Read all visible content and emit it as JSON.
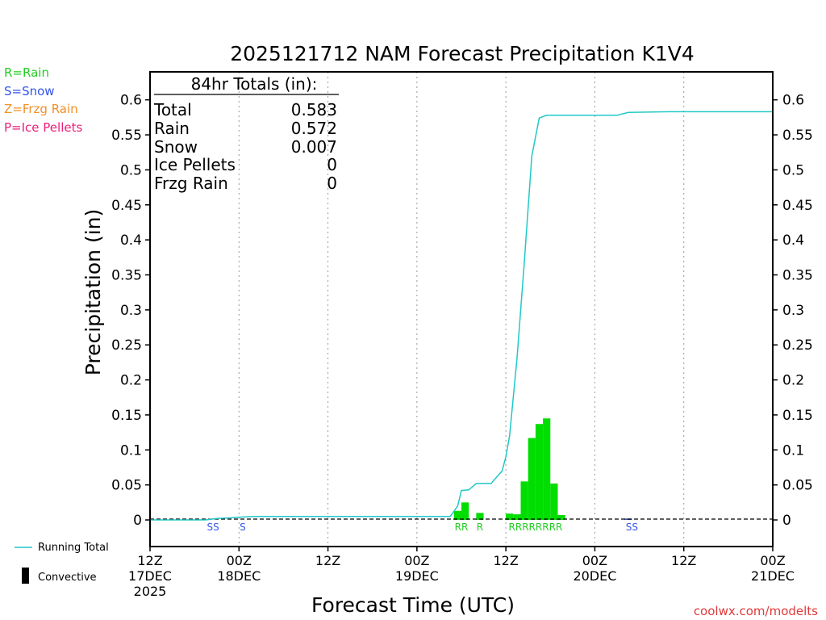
{
  "chart_data": {
    "type": "bar",
    "title": "2025121712 NAM Forecast Precipitation K1V4",
    "xlabel": "Forecast Time (UTC)",
    "ylabel": "Precipitation (in)",
    "ylim": [
      -0.038,
      0.64
    ],
    "yticks": [
      0,
      0.05,
      0.1,
      0.15,
      0.2,
      0.25,
      0.3,
      0.35,
      0.4,
      0.45,
      0.5,
      0.55,
      0.6
    ],
    "ytick_labels": [
      "0",
      "0.05",
      "0.1",
      "0.15",
      "0.2",
      "0.25",
      "0.3",
      "0.35",
      "0.4",
      "0.45",
      "0.5",
      "0.55",
      "0.6"
    ],
    "xlim": [
      0,
      84
    ],
    "grid": "x-dotted",
    "xticks": [
      {
        "h": 0,
        "lines": [
          "12Z",
          "17DEC",
          "2025"
        ]
      },
      {
        "h": 12,
        "lines": [
          "00Z",
          "18DEC"
        ]
      },
      {
        "h": 24,
        "lines": [
          "12Z"
        ]
      },
      {
        "h": 36,
        "lines": [
          "00Z",
          "19DEC"
        ]
      },
      {
        "h": 48,
        "lines": [
          "12Z"
        ]
      },
      {
        "h": 60,
        "lines": [
          "00Z",
          "20DEC"
        ]
      },
      {
        "h": 72,
        "lines": [
          "12Z"
        ]
      },
      {
        "h": 84,
        "lines": [
          "00Z",
          "21DEC"
        ]
      }
    ],
    "legend_left": [
      {
        "text": "R=Rain",
        "color": "#22cc22"
      },
      {
        "text": "S=Snow",
        "color": "#3355ee"
      },
      {
        "text": "Z=Frzg Rain",
        "color": "#f0902a"
      },
      {
        "text": "P=Ice Pellets",
        "color": "#e8207a"
      }
    ],
    "legend_bottom": [
      {
        "text": "Running Total",
        "kind": "line",
        "color": "#20c8c8"
      },
      {
        "text": "Convective",
        "kind": "bar",
        "color": "#000000"
      }
    ],
    "totals_box": {
      "header": "84hr Totals (in):",
      "rows": [
        {
          "label": "Total",
          "value": "0.583"
        },
        {
          "label": "Rain",
          "value": "0.572"
        },
        {
          "label": "Snow",
          "value": "0.007"
        },
        {
          "label": "Ice Pellets",
          "value": "0"
        },
        {
          "label": "Frzg Rain",
          "value": "0"
        }
      ]
    },
    "series": [
      {
        "name": "Running Total",
        "kind": "line",
        "color": "#20c8c8",
        "points": [
          [
            0,
            0
          ],
          [
            7.5,
            0
          ],
          [
            9,
            0.002
          ],
          [
            11,
            0.003
          ],
          [
            12,
            0.004
          ],
          [
            14,
            0.005
          ],
          [
            40.5,
            0.005
          ],
          [
            41.5,
            0.02
          ],
          [
            42,
            0.042
          ],
          [
            43,
            0.043
          ],
          [
            44,
            0.052
          ],
          [
            45,
            0.052
          ],
          [
            46,
            0.052
          ],
          [
            47.5,
            0.07
          ],
          [
            48,
            0.09
          ],
          [
            48.5,
            0.12
          ],
          [
            49.5,
            0.23
          ],
          [
            50.5,
            0.37
          ],
          [
            51.5,
            0.52
          ],
          [
            52.5,
            0.574
          ],
          [
            53.5,
            0.578
          ],
          [
            55,
            0.578
          ],
          [
            60,
            0.578
          ],
          [
            63,
            0.578
          ],
          [
            64.5,
            0.582
          ],
          [
            70,
            0.583
          ],
          [
            84,
            0.583
          ]
        ]
      },
      {
        "name": "Rain",
        "kind": "bar",
        "color": "#00dd00",
        "bars": [
          {
            "h": 41.5,
            "v": 0.013
          },
          {
            "h": 42.5,
            "v": 0.025
          },
          {
            "h": 44.5,
            "v": 0.01
          },
          {
            "h": 48.5,
            "v": 0.009
          },
          {
            "h": 49.5,
            "v": 0.008
          },
          {
            "h": 50.5,
            "v": 0.055
          },
          {
            "h": 51.5,
            "v": 0.117
          },
          {
            "h": 52.5,
            "v": 0.137
          },
          {
            "h": 53.5,
            "v": 0.145
          },
          {
            "h": 54.5,
            "v": 0.052
          },
          {
            "h": 55.5,
            "v": 0.007
          }
        ]
      },
      {
        "name": "Snow",
        "kind": "bar",
        "color": "#3355cc",
        "bars": [
          {
            "h": 64.5,
            "v": 0.002
          }
        ]
      }
    ],
    "ptype_labels": [
      {
        "h": 8.5,
        "text": "SS",
        "color": "#3355ee"
      },
      {
        "h": 12.5,
        "text": "S",
        "color": "#3355ee"
      },
      {
        "h": 42.0,
        "text": "RR",
        "color": "#22cc22"
      },
      {
        "h": 44.5,
        "text": "R",
        "color": "#22cc22"
      },
      {
        "h": 52.0,
        "text": "RRRRRRRR",
        "color": "#22cc22"
      },
      {
        "h": 65.0,
        "text": "SS",
        "color": "#3355ee"
      }
    ],
    "credit": "coolwx.com/modelts"
  }
}
